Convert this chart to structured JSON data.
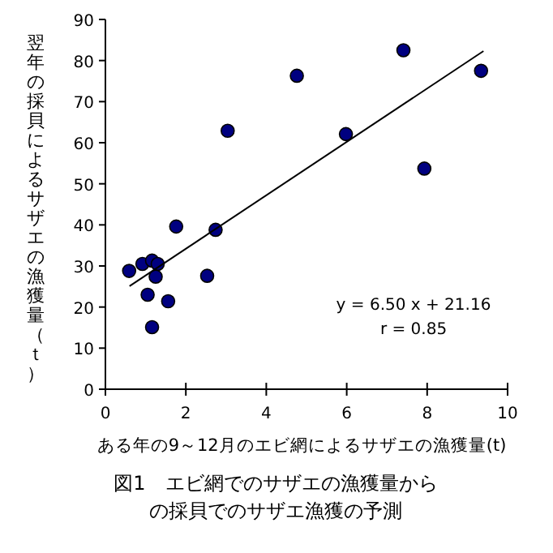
{
  "chart_data": {
    "type": "scatter",
    "title": "図1　エビ網でのサザエの漁獲量からの採貝でのサザエ漁獲の予測",
    "xlabel": "ある年の9～12月のエビ網によるサザエの漁獲量(t)",
    "ylabel": "翌年の採貝によるサザエの漁獲量（ｔ）",
    "xlim": [
      0,
      10
    ],
    "xticks": [
      0,
      2,
      4,
      6,
      8,
      10
    ],
    "ylim": [
      0,
      90
    ],
    "yticks": [
      0,
      10,
      20,
      30,
      40,
      50,
      60,
      70,
      80,
      90
    ],
    "grid": false,
    "marker": "circle",
    "series": [
      {
        "type": "scatter",
        "color": "#000080",
        "x": [
          0.59,
          0.92,
          1.05,
          1.16,
          1.3,
          1.25,
          1.16,
          1.56,
          1.76,
          2.53,
          2.74,
          3.04,
          4.76,
          5.98,
          7.41,
          7.93,
          9.34
        ],
        "values": [
          28.8,
          30.5,
          23,
          31.3,
          30.5,
          27.4,
          15.1,
          21.4,
          39.6,
          27.6,
          38.8,
          62.9,
          76.3,
          62.1,
          82.5,
          53.7,
          77.5
        ]
      },
      {
        "type": "line",
        "color": "#000000",
        "marker": "none",
        "line_style": "solid",
        "x": [
          0.6,
          9.4
        ],
        "values": [
          25.1,
          82.3
        ]
      }
    ],
    "annotations": [
      "y = 6.50 x + 21.16",
      "r = 0.85"
    ]
  }
}
